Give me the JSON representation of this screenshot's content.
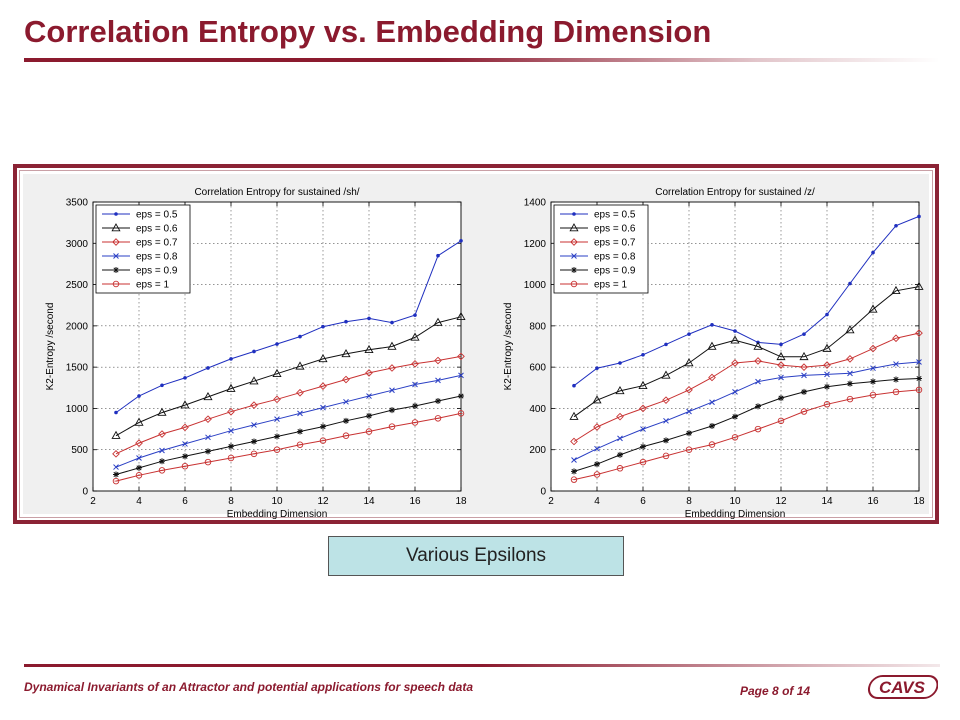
{
  "slide": {
    "title": "Correlation Entropy vs. Embedding Dimension",
    "caption": "Various Epsilons",
    "footer_left": "Dynamical Invariants of an Attractor and potential applications for speech data",
    "page_prefix": "Page",
    "page_number": "8",
    "page_of": "of",
    "page_total": "14",
    "logo_text": "CAVS",
    "colors": {
      "accent": "#8b1a2e",
      "caption_bg": "#bde3e6"
    }
  },
  "chart_data": [
    {
      "type": "line",
      "title": "Correlation Entropy for sustained /sh/",
      "xlabel": "Embedding Dimension",
      "ylabel": "K2-Entropy /second",
      "xlim": [
        2,
        18
      ],
      "ylim": [
        0,
        3500
      ],
      "xticks": [
        2,
        4,
        6,
        8,
        10,
        12,
        14,
        16,
        18
      ],
      "yticks": [
        0,
        500,
        1000,
        1500,
        2000,
        2500,
        3000,
        3500
      ],
      "grid": true,
      "legend_position": "top-left",
      "x": [
        3,
        4,
        5,
        6,
        7,
        8,
        9,
        10,
        11,
        12,
        13,
        14,
        15,
        16,
        17,
        18
      ],
      "series": [
        {
          "name": "eps = 0.5",
          "color": "#1f2fbf",
          "marker": "dot",
          "values": [
            950,
            1150,
            1280,
            1370,
            1490,
            1600,
            1690,
            1780,
            1870,
            1990,
            2050,
            2090,
            2040,
            2130,
            2850,
            3030
          ]
        },
        {
          "name": "eps = 0.6",
          "color": "#111111",
          "marker": "triangle",
          "values": [
            670,
            830,
            950,
            1040,
            1140,
            1240,
            1330,
            1420,
            1510,
            1600,
            1660,
            1710,
            1750,
            1860,
            2040,
            2110
          ]
        },
        {
          "name": "eps = 0.7",
          "color": "#c83232",
          "marker": "diamond",
          "values": [
            450,
            580,
            690,
            770,
            870,
            960,
            1040,
            1110,
            1190,
            1270,
            1350,
            1430,
            1490,
            1540,
            1580,
            1630
          ]
        },
        {
          "name": "eps = 0.8",
          "color": "#2a3fc4",
          "marker": "x",
          "values": [
            290,
            400,
            490,
            570,
            650,
            730,
            800,
            870,
            940,
            1010,
            1080,
            1150,
            1220,
            1290,
            1340,
            1400
          ]
        },
        {
          "name": "eps = 0.9",
          "color": "#111111",
          "marker": "star",
          "values": [
            200,
            280,
            360,
            420,
            480,
            540,
            600,
            660,
            720,
            780,
            850,
            910,
            980,
            1030,
            1090,
            1150
          ]
        },
        {
          "name": "eps = 1",
          "color": "#c83232",
          "marker": "circle",
          "values": [
            120,
            190,
            250,
            300,
            350,
            400,
            450,
            500,
            560,
            610,
            670,
            720,
            780,
            830,
            880,
            940
          ]
        }
      ]
    },
    {
      "type": "line",
      "title": "Correlation Entropy for sustained /z/",
      "xlabel": "Embedding Dimension",
      "ylabel": "K2-Entropy /second",
      "xlim": [
        2,
        18
      ],
      "ylim": [
        0,
        1400
      ],
      "xticks": [
        2,
        4,
        6,
        8,
        10,
        12,
        14,
        16,
        18
      ],
      "yticks": [
        0,
        200,
        400,
        600,
        800,
        1000,
        1200,
        1400
      ],
      "grid": true,
      "legend_position": "top-left",
      "x": [
        3,
        4,
        5,
        6,
        7,
        8,
        9,
        10,
        11,
        12,
        13,
        14,
        15,
        16,
        17,
        18
      ],
      "series": [
        {
          "name": "eps = 0.5",
          "color": "#1f2fbf",
          "marker": "dot",
          "values": [
            510,
            595,
            620,
            660,
            710,
            760,
            805,
            775,
            720,
            710,
            760,
            855,
            1005,
            1155,
            1285,
            1330
          ]
        },
        {
          "name": "eps = 0.6",
          "color": "#111111",
          "marker": "triangle",
          "values": [
            360,
            440,
            485,
            510,
            560,
            620,
            700,
            730,
            700,
            650,
            650,
            690,
            780,
            880,
            970,
            990
          ]
        },
        {
          "name": "eps = 0.7",
          "color": "#c83232",
          "marker": "diamond",
          "values": [
            240,
            310,
            360,
            400,
            440,
            490,
            550,
            620,
            630,
            610,
            600,
            610,
            640,
            690,
            740,
            765
          ]
        },
        {
          "name": "eps = 0.8",
          "color": "#2a3fc4",
          "marker": "x",
          "values": [
            150,
            205,
            255,
            300,
            340,
            385,
            430,
            480,
            530,
            550,
            560,
            565,
            570,
            595,
            615,
            625
          ]
        },
        {
          "name": "eps = 0.9",
          "color": "#111111",
          "marker": "star",
          "values": [
            95,
            130,
            175,
            215,
            245,
            280,
            315,
            360,
            410,
            450,
            480,
            505,
            520,
            530,
            540,
            545
          ]
        },
        {
          "name": "eps = 1",
          "color": "#c83232",
          "marker": "circle",
          "values": [
            55,
            80,
            110,
            140,
            170,
            200,
            225,
            260,
            300,
            340,
            385,
            420,
            445,
            465,
            480,
            490
          ]
        }
      ]
    }
  ]
}
